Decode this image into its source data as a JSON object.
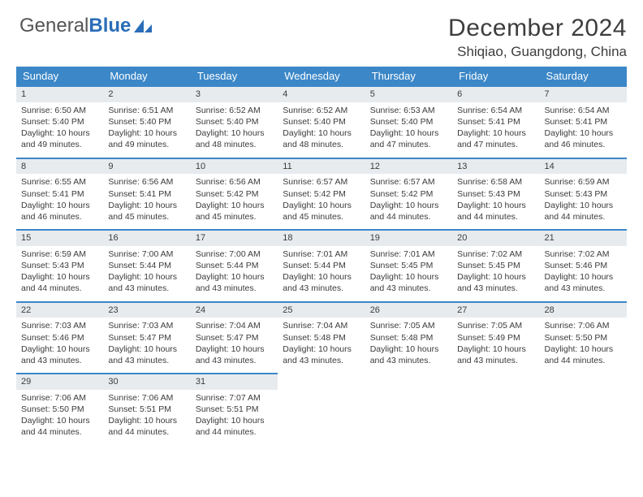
{
  "logo": {
    "text1": "General",
    "text2": "Blue"
  },
  "title": "December 2024",
  "location": "Shiqiao, Guangdong, China",
  "colors": {
    "header_bg": "#3b87c8",
    "header_text": "#ffffff",
    "daynum_bg": "#e8ebee",
    "daynum_border": "#3b87c8",
    "text": "#3b3b3b",
    "logo_gray": "#555",
    "logo_blue": "#2a6db8",
    "background": "#ffffff"
  },
  "typography": {
    "month_title_fontsize": 30,
    "location_fontsize": 17,
    "weekday_fontsize": 13,
    "cell_fontsize": 10.5,
    "font_family": "Arial"
  },
  "weekdays": [
    "Sunday",
    "Monday",
    "Tuesday",
    "Wednesday",
    "Thursday",
    "Friday",
    "Saturday"
  ],
  "days": [
    {
      "n": 1,
      "sunrise": "6:50 AM",
      "sunset": "5:40 PM",
      "daylight": "10 hours and 49 minutes."
    },
    {
      "n": 2,
      "sunrise": "6:51 AM",
      "sunset": "5:40 PM",
      "daylight": "10 hours and 49 minutes."
    },
    {
      "n": 3,
      "sunrise": "6:52 AM",
      "sunset": "5:40 PM",
      "daylight": "10 hours and 48 minutes."
    },
    {
      "n": 4,
      "sunrise": "6:52 AM",
      "sunset": "5:40 PM",
      "daylight": "10 hours and 48 minutes."
    },
    {
      "n": 5,
      "sunrise": "6:53 AM",
      "sunset": "5:40 PM",
      "daylight": "10 hours and 47 minutes."
    },
    {
      "n": 6,
      "sunrise": "6:54 AM",
      "sunset": "5:41 PM",
      "daylight": "10 hours and 47 minutes."
    },
    {
      "n": 7,
      "sunrise": "6:54 AM",
      "sunset": "5:41 PM",
      "daylight": "10 hours and 46 minutes."
    },
    {
      "n": 8,
      "sunrise": "6:55 AM",
      "sunset": "5:41 PM",
      "daylight": "10 hours and 46 minutes."
    },
    {
      "n": 9,
      "sunrise": "6:56 AM",
      "sunset": "5:41 PM",
      "daylight": "10 hours and 45 minutes."
    },
    {
      "n": 10,
      "sunrise": "6:56 AM",
      "sunset": "5:42 PM",
      "daylight": "10 hours and 45 minutes."
    },
    {
      "n": 11,
      "sunrise": "6:57 AM",
      "sunset": "5:42 PM",
      "daylight": "10 hours and 45 minutes."
    },
    {
      "n": 12,
      "sunrise": "6:57 AM",
      "sunset": "5:42 PM",
      "daylight": "10 hours and 44 minutes."
    },
    {
      "n": 13,
      "sunrise": "6:58 AM",
      "sunset": "5:43 PM",
      "daylight": "10 hours and 44 minutes."
    },
    {
      "n": 14,
      "sunrise": "6:59 AM",
      "sunset": "5:43 PM",
      "daylight": "10 hours and 44 minutes."
    },
    {
      "n": 15,
      "sunrise": "6:59 AM",
      "sunset": "5:43 PM",
      "daylight": "10 hours and 44 minutes."
    },
    {
      "n": 16,
      "sunrise": "7:00 AM",
      "sunset": "5:44 PM",
      "daylight": "10 hours and 43 minutes."
    },
    {
      "n": 17,
      "sunrise": "7:00 AM",
      "sunset": "5:44 PM",
      "daylight": "10 hours and 43 minutes."
    },
    {
      "n": 18,
      "sunrise": "7:01 AM",
      "sunset": "5:44 PM",
      "daylight": "10 hours and 43 minutes."
    },
    {
      "n": 19,
      "sunrise": "7:01 AM",
      "sunset": "5:45 PM",
      "daylight": "10 hours and 43 minutes."
    },
    {
      "n": 20,
      "sunrise": "7:02 AM",
      "sunset": "5:45 PM",
      "daylight": "10 hours and 43 minutes."
    },
    {
      "n": 21,
      "sunrise": "7:02 AM",
      "sunset": "5:46 PM",
      "daylight": "10 hours and 43 minutes."
    },
    {
      "n": 22,
      "sunrise": "7:03 AM",
      "sunset": "5:46 PM",
      "daylight": "10 hours and 43 minutes."
    },
    {
      "n": 23,
      "sunrise": "7:03 AM",
      "sunset": "5:47 PM",
      "daylight": "10 hours and 43 minutes."
    },
    {
      "n": 24,
      "sunrise": "7:04 AM",
      "sunset": "5:47 PM",
      "daylight": "10 hours and 43 minutes."
    },
    {
      "n": 25,
      "sunrise": "7:04 AM",
      "sunset": "5:48 PM",
      "daylight": "10 hours and 43 minutes."
    },
    {
      "n": 26,
      "sunrise": "7:05 AM",
      "sunset": "5:48 PM",
      "daylight": "10 hours and 43 minutes."
    },
    {
      "n": 27,
      "sunrise": "7:05 AM",
      "sunset": "5:49 PM",
      "daylight": "10 hours and 43 minutes."
    },
    {
      "n": 28,
      "sunrise": "7:06 AM",
      "sunset": "5:50 PM",
      "daylight": "10 hours and 44 minutes."
    },
    {
      "n": 29,
      "sunrise": "7:06 AM",
      "sunset": "5:50 PM",
      "daylight": "10 hours and 44 minutes."
    },
    {
      "n": 30,
      "sunrise": "7:06 AM",
      "sunset": "5:51 PM",
      "daylight": "10 hours and 44 minutes."
    },
    {
      "n": 31,
      "sunrise": "7:07 AM",
      "sunset": "5:51 PM",
      "daylight": "10 hours and 44 minutes."
    }
  ],
  "labels": {
    "sunrise": "Sunrise: ",
    "sunset": "Sunset: ",
    "daylight": "Daylight: "
  },
  "layout": {
    "start_day_index": 0,
    "total_cells": 35,
    "columns": 7
  }
}
